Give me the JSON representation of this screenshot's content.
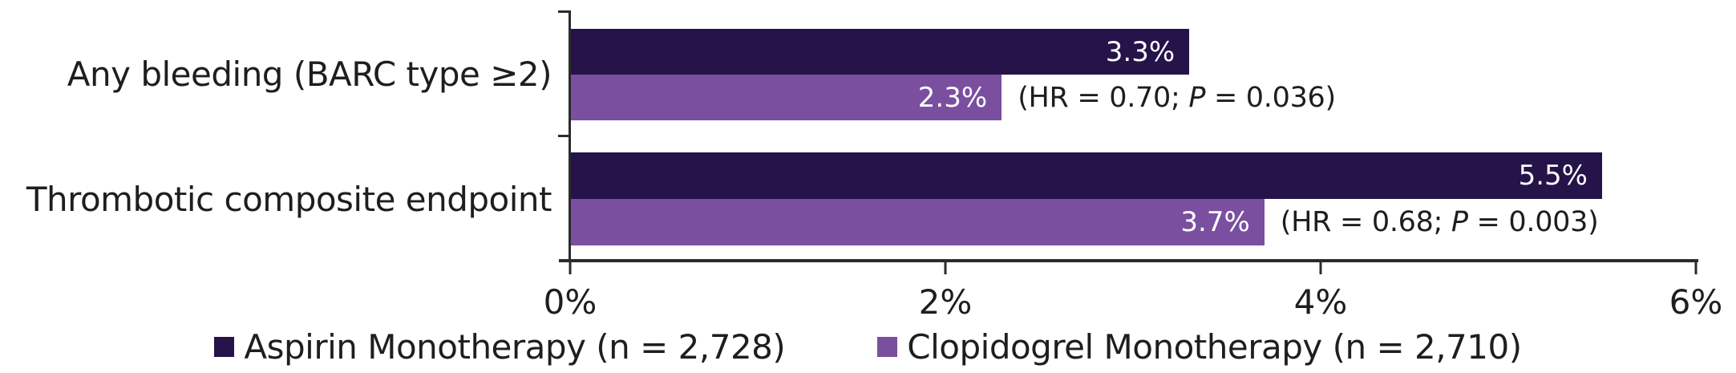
{
  "chart_data": {
    "type": "bar",
    "orientation": "horizontal",
    "title": "",
    "xlabel": "",
    "ylabel": "",
    "grid": false,
    "legend_position": "bottom",
    "background_color": "#FFFFFF",
    "axis_color": "#2B2B2B",
    "text_color": "#1E1E1E",
    "categories": [
      "Any bleeding (BARC type ≥2)",
      "Thrombotic composite endpoint"
    ],
    "series": [
      {
        "name": "Aspirin Monotherapy (n = 2,728)",
        "color": "#251349",
        "values": [
          3.3,
          5.5
        ],
        "value_labels": [
          "3.3%",
          "5.5%"
        ]
      },
      {
        "name": "Clopidogrel Monotherapy (n = 2,710)",
        "color": "#7A4FA0",
        "values": [
          2.3,
          3.7
        ],
        "value_labels": [
          "2.3%",
          "3.7%"
        ]
      }
    ],
    "annotations": [
      {
        "pre": "(HR = 0.70; ",
        "italic": "P",
        "post": " = 0.036)"
      },
      {
        "pre": "(HR = 0.68; ",
        "italic": "P",
        "post": " = 0.003)"
      }
    ],
    "x_axis": {
      "min": 0,
      "max": 6,
      "tick_values": [
        0,
        2,
        4,
        6
      ],
      "tick_labels": [
        "0%",
        "2%",
        "4%",
        "6%"
      ]
    }
  }
}
